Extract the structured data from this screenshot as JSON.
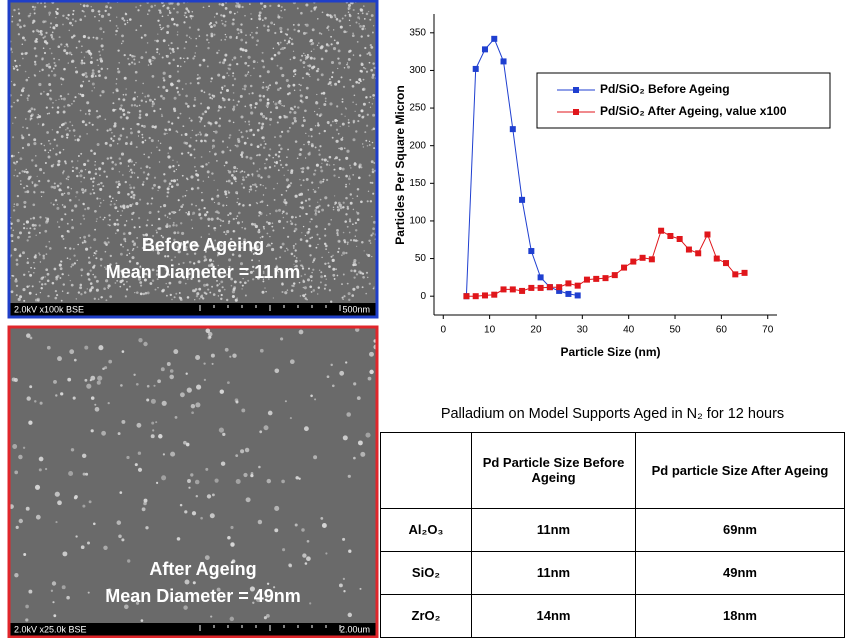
{
  "images": [
    {
      "caption": [
        "Before Ageing",
        "Mean Diameter = 11nm"
      ],
      "info": "2.0kV x100k BSE",
      "scale": "500nm",
      "border": "#1f3fc8"
    },
    {
      "caption": [
        "After Ageing",
        "Mean Diameter = 49nm"
      ],
      "info": "2.0kV x25.0k BSE",
      "scale": "2.00um",
      "border": "#e0262b"
    }
  ],
  "chart_data": {
    "type": "line",
    "x_label": "Particle Size (nm)",
    "y_label": "Particles Per Square Micron",
    "xlim": [
      -2,
      72
    ],
    "ylim": [
      -25,
      375
    ],
    "xticks": [
      0,
      10,
      20,
      30,
      40,
      50,
      60,
      70
    ],
    "yticks": [
      0,
      50,
      100,
      150,
      200,
      250,
      300,
      350
    ],
    "legend": "upper right",
    "series": [
      {
        "name": "Pd/SiO₂ Before Ageing",
        "color": "#1f3fd0",
        "x": [
          5,
          7,
          9,
          11,
          13,
          15,
          17,
          19,
          21,
          23,
          25,
          27,
          29
        ],
        "values": [
          0,
          302,
          328,
          342,
          312,
          222,
          128,
          60,
          25,
          12,
          7,
          3,
          1
        ]
      },
      {
        "name": "Pd/SiO₂ After Ageing, value x100",
        "color": "#e0161b",
        "x": [
          5,
          7,
          9,
          11,
          13,
          15,
          17,
          19,
          21,
          23,
          25,
          27,
          29,
          31,
          33,
          35,
          37,
          39,
          41,
          43,
          45,
          47,
          49,
          51,
          53,
          55,
          57,
          59,
          61,
          63,
          65
        ],
        "values": [
          0,
          0,
          1,
          2,
          9,
          9,
          7,
          11,
          11,
          12,
          12,
          17,
          14,
          22,
          23,
          24,
          28,
          38,
          46,
          51,
          49,
          87,
          80,
          76,
          62,
          57,
          82,
          50,
          44,
          29,
          31
        ]
      }
    ]
  },
  "table": {
    "title": "Palladium on Model Supports Aged in N₂ for 12 hours",
    "header": [
      "Pd Particle Size Before Ageing",
      "Pd particle Size After Ageing"
    ],
    "rows": [
      [
        "Al₂O₃",
        "11nm",
        "69nm"
      ],
      [
        "SiO₂",
        "11nm",
        "49nm"
      ],
      [
        "ZrO₂",
        "14nm",
        "18nm"
      ]
    ]
  }
}
